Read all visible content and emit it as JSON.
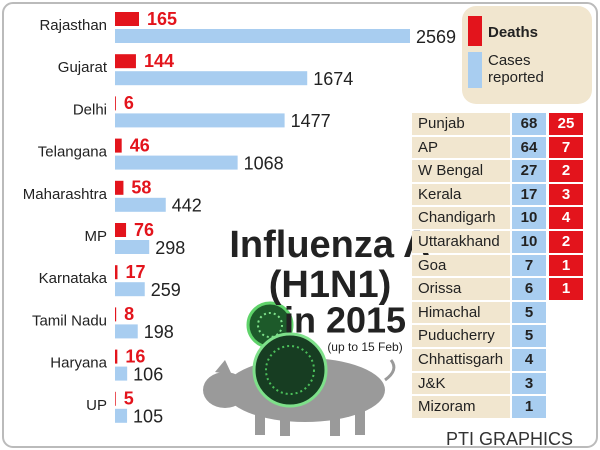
{
  "chart_data": {
    "type": "bar",
    "title": [
      "Influenza A",
      "(H1N1)",
      "in 2015"
    ],
    "subtitle": "(up to 15 Feb)",
    "categories": [
      "Rajasthan",
      "Gujarat",
      "Delhi",
      "Telangana",
      "Maharashtra",
      "MP",
      "Karnataka",
      "Tamil Nadu",
      "Haryana",
      "UP"
    ],
    "series": [
      {
        "name": "Deaths",
        "color": "#e3141c",
        "values": [
          165,
          144,
          6,
          46,
          58,
          76,
          17,
          8,
          16,
          5
        ]
      },
      {
        "name": "Cases reported",
        "color": "#a8cdf0",
        "values": [
          2569,
          1674,
          1477,
          1068,
          442,
          298,
          259,
          198,
          106,
          105
        ]
      }
    ]
  },
  "table": {
    "rows": [
      [
        "Punjab",
        68,
        25
      ],
      [
        "AP",
        64,
        7
      ],
      [
        "W Bengal",
        27,
        2
      ],
      [
        "Kerala",
        17,
        3
      ],
      [
        "Chandigarh",
        10,
        4
      ],
      [
        "Uttarakhand",
        10,
        2
      ],
      [
        "Goa",
        7,
        1
      ],
      [
        "Orissa",
        6,
        1
      ],
      [
        "Himachal",
        5,
        null
      ],
      [
        "Puducherry",
        5,
        null
      ],
      [
        "Chhattisgarh",
        4,
        null
      ],
      [
        "J&K",
        3,
        null
      ],
      [
        "Mizoram",
        1,
        null
      ]
    ]
  },
  "credit": "PTI GRAPHICS"
}
